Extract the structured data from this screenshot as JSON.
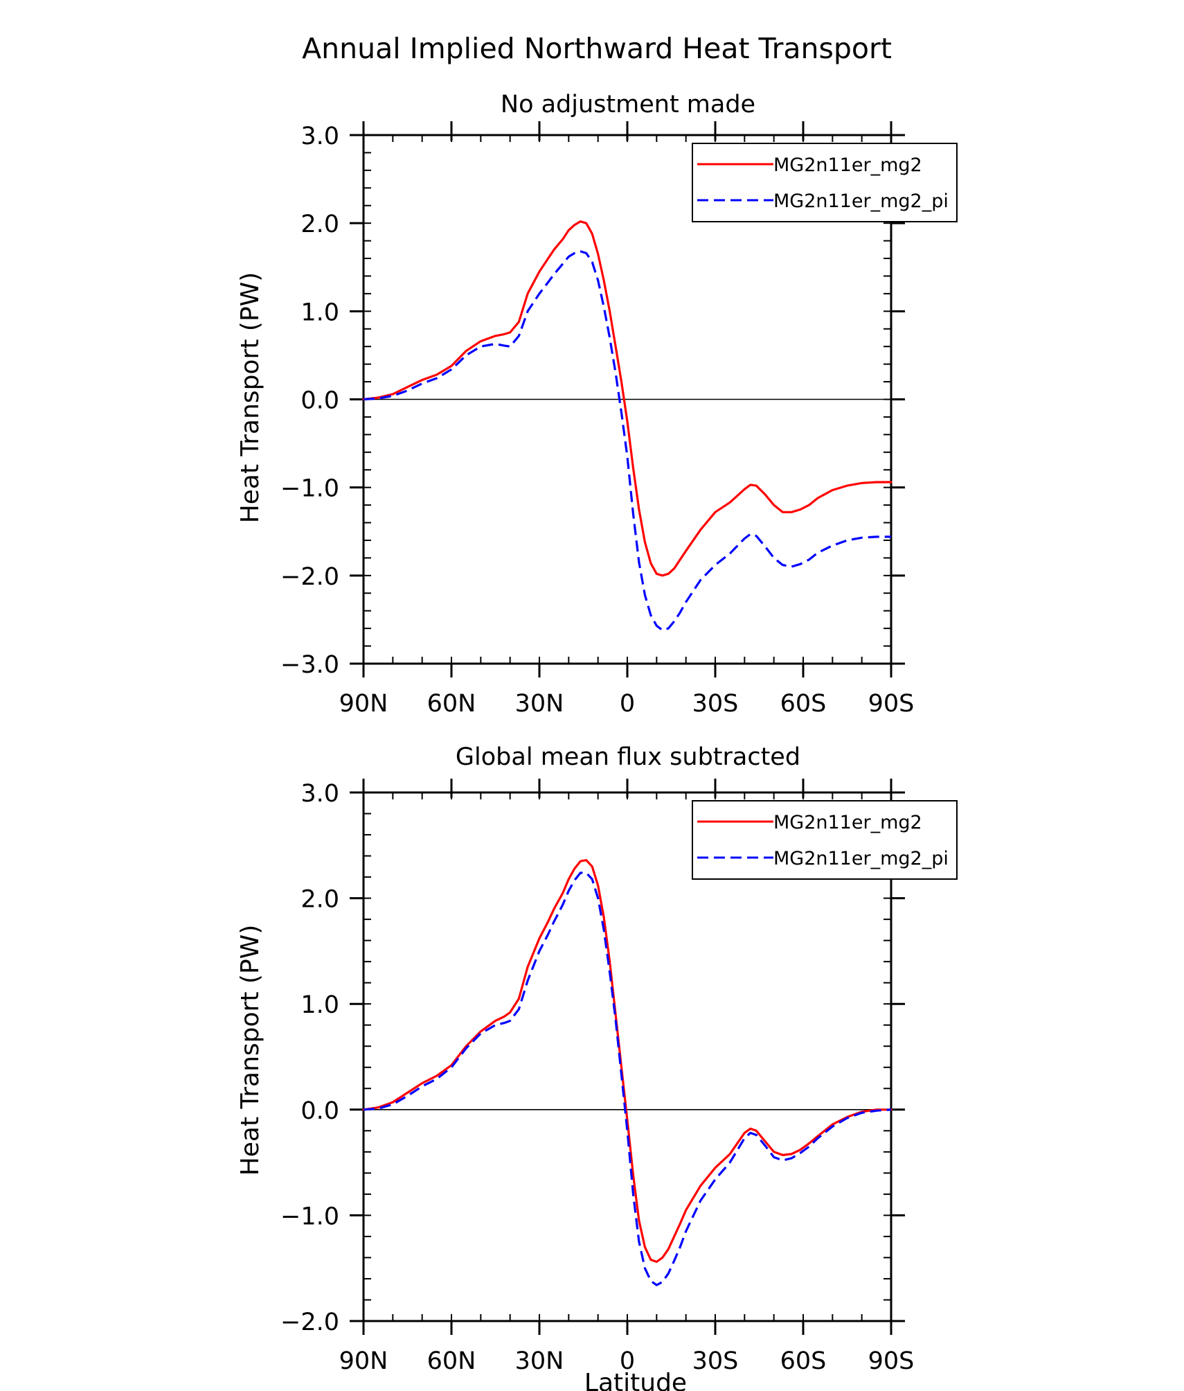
{
  "figure": {
    "title": "Annual Implied Northward Heat Transport"
  },
  "chart_data": [
    {
      "type": "line",
      "title": "No adjustment made",
      "xlabel": "",
      "ylabel": "Heat Transport (PW)",
      "xlim": [
        90,
        -90
      ],
      "ylim": [
        -3.0,
        3.0
      ],
      "xticks": [
        90,
        60,
        30,
        0,
        -30,
        -60,
        -90
      ],
      "xtick_labels": [
        "90N",
        "60N",
        "30N",
        "0",
        "30S",
        "60S",
        "90S"
      ],
      "yticks": [
        -3.0,
        -2.0,
        -1.0,
        0.0,
        1.0,
        2.0,
        3.0
      ],
      "ytick_labels": [
        "−3.0",
        "−2.0",
        "−1.0",
        "0.0",
        "1.0",
        "2.0",
        "3.0"
      ],
      "legend": "top-right",
      "reference_line": 0,
      "x_units": "degrees latitude (positive = N)",
      "series": [
        {
          "name": "MG2n11er_mg2",
          "color": "#ff0000",
          "dash": "solid",
          "x": [
            90,
            85,
            80,
            75,
            70,
            65,
            60,
            55,
            50,
            45,
            42,
            40,
            37,
            34,
            30,
            27,
            25,
            22,
            20,
            18,
            16,
            14,
            12,
            10,
            8,
            6,
            4,
            2,
            0,
            -2,
            -4,
            -6,
            -8,
            -10,
            -12,
            -14,
            -16,
            -18,
            -20,
            -25,
            -30,
            -35,
            -40,
            -42,
            -44,
            -47,
            -50,
            -53,
            -56,
            -59,
            -62,
            -65,
            -70,
            -75,
            -80,
            -85,
            -90
          ],
          "y": [
            0.0,
            0.02,
            0.06,
            0.14,
            0.22,
            0.28,
            0.38,
            0.55,
            0.66,
            0.72,
            0.74,
            0.76,
            0.88,
            1.2,
            1.45,
            1.6,
            1.7,
            1.82,
            1.92,
            1.98,
            2.02,
            2.0,
            1.88,
            1.65,
            1.35,
            1.0,
            0.6,
            0.2,
            -0.25,
            -0.78,
            -1.25,
            -1.62,
            -1.86,
            -1.98,
            -2.0,
            -1.98,
            -1.92,
            -1.82,
            -1.72,
            -1.48,
            -1.28,
            -1.17,
            -1.02,
            -0.97,
            -0.98,
            -1.08,
            -1.2,
            -1.28,
            -1.28,
            -1.25,
            -1.2,
            -1.12,
            -1.03,
            -0.98,
            -0.95,
            -0.94,
            -0.94
          ]
        },
        {
          "name": "MG2n11er_mg2_pi",
          "color": "#0000ff",
          "dash": "dashed",
          "x": [
            90,
            85,
            80,
            75,
            70,
            65,
            60,
            55,
            50,
            45,
            42,
            40,
            37,
            34,
            30,
            27,
            25,
            22,
            20,
            18,
            16,
            14,
            12,
            10,
            8,
            6,
            4,
            2,
            0,
            -2,
            -4,
            -6,
            -8,
            -10,
            -12,
            -14,
            -16,
            -18,
            -20,
            -25,
            -30,
            -35,
            -40,
            -42,
            -44,
            -47,
            -50,
            -53,
            -56,
            -59,
            -62,
            -65,
            -70,
            -75,
            -80,
            -85,
            -90
          ],
          "y": [
            0.0,
            0.01,
            0.04,
            0.1,
            0.18,
            0.24,
            0.34,
            0.5,
            0.6,
            0.63,
            0.61,
            0.6,
            0.72,
            1.0,
            1.2,
            1.33,
            1.42,
            1.54,
            1.62,
            1.66,
            1.68,
            1.66,
            1.56,
            1.35,
            1.05,
            0.7,
            0.3,
            -0.15,
            -0.65,
            -1.3,
            -1.85,
            -2.22,
            -2.45,
            -2.57,
            -2.62,
            -2.6,
            -2.52,
            -2.42,
            -2.3,
            -2.05,
            -1.88,
            -1.75,
            -1.58,
            -1.53,
            -1.55,
            -1.67,
            -1.8,
            -1.88,
            -1.9,
            -1.87,
            -1.82,
            -1.74,
            -1.66,
            -1.6,
            -1.57,
            -1.56,
            -1.56
          ]
        }
      ]
    },
    {
      "type": "line",
      "title": "Global mean flux subtracted",
      "xlabel": "Latitude",
      "ylabel": "Heat Transport (PW)",
      "xlim": [
        90,
        -90
      ],
      "ylim": [
        -2.0,
        3.0
      ],
      "xticks": [
        90,
        60,
        30,
        0,
        -30,
        -60,
        -90
      ],
      "xtick_labels": [
        "90N",
        "60N",
        "30N",
        "0",
        "30S",
        "60S",
        "90S"
      ],
      "yticks": [
        -2.0,
        -1.0,
        0.0,
        1.0,
        2.0,
        3.0
      ],
      "ytick_labels": [
        "−2.0",
        "−1.0",
        "0.0",
        "1.0",
        "2.0",
        "3.0"
      ],
      "legend": "top-right",
      "reference_line": 0,
      "x_units": "degrees latitude (positive = N)",
      "series": [
        {
          "name": "MG2n11er_mg2",
          "color": "#ff0000",
          "dash": "solid",
          "x": [
            90,
            85,
            80,
            75,
            70,
            65,
            60,
            55,
            50,
            45,
            42,
            40,
            37,
            34,
            30,
            27,
            25,
            22,
            20,
            18,
            16,
            14,
            12,
            10,
            8,
            6,
            4,
            2,
            0,
            -2,
            -4,
            -6,
            -8,
            -10,
            -12,
            -14,
            -16,
            -18,
            -20,
            -25,
            -30,
            -35,
            -40,
            -42,
            -44,
            -47,
            -50,
            -53,
            -56,
            -59,
            -62,
            -65,
            -70,
            -75,
            -80,
            -85,
            -90
          ],
          "y": [
            0.0,
            0.02,
            0.07,
            0.16,
            0.25,
            0.32,
            0.42,
            0.6,
            0.74,
            0.84,
            0.88,
            0.92,
            1.05,
            1.35,
            1.62,
            1.78,
            1.9,
            2.05,
            2.18,
            2.28,
            2.35,
            2.36,
            2.3,
            2.12,
            1.82,
            1.4,
            0.9,
            0.4,
            -0.1,
            -0.62,
            -1.05,
            -1.3,
            -1.42,
            -1.44,
            -1.4,
            -1.32,
            -1.2,
            -1.08,
            -0.95,
            -0.72,
            -0.55,
            -0.42,
            -0.22,
            -0.18,
            -0.2,
            -0.3,
            -0.4,
            -0.43,
            -0.42,
            -0.38,
            -0.32,
            -0.25,
            -0.14,
            -0.07,
            -0.02,
            0.0,
            0.0
          ]
        },
        {
          "name": "MG2n11er_mg2_pi",
          "color": "#0000ff",
          "dash": "dashed",
          "x": [
            90,
            85,
            80,
            75,
            70,
            65,
            60,
            55,
            50,
            45,
            42,
            40,
            37,
            34,
            30,
            27,
            25,
            22,
            20,
            18,
            16,
            14,
            12,
            10,
            8,
            6,
            4,
            2,
            0,
            -2,
            -4,
            -6,
            -8,
            -10,
            -12,
            -14,
            -16,
            -18,
            -20,
            -25,
            -30,
            -35,
            -40,
            -42,
            -44,
            -47,
            -50,
            -53,
            -56,
            -59,
            -62,
            -65,
            -70,
            -75,
            -80,
            -85,
            -90
          ],
          "y": [
            0.0,
            0.01,
            0.05,
            0.13,
            0.22,
            0.29,
            0.4,
            0.58,
            0.72,
            0.8,
            0.82,
            0.84,
            0.95,
            1.22,
            1.5,
            1.66,
            1.78,
            1.94,
            2.07,
            2.17,
            2.24,
            2.24,
            2.18,
            2.0,
            1.7,
            1.3,
            0.85,
            0.33,
            -0.2,
            -0.8,
            -1.25,
            -1.5,
            -1.62,
            -1.66,
            -1.63,
            -1.55,
            -1.43,
            -1.3,
            -1.15,
            -0.86,
            -0.66,
            -0.5,
            -0.27,
            -0.22,
            -0.24,
            -0.34,
            -0.45,
            -0.48,
            -0.46,
            -0.41,
            -0.35,
            -0.27,
            -0.16,
            -0.08,
            -0.03,
            -0.01,
            0.0
          ]
        }
      ]
    }
  ]
}
